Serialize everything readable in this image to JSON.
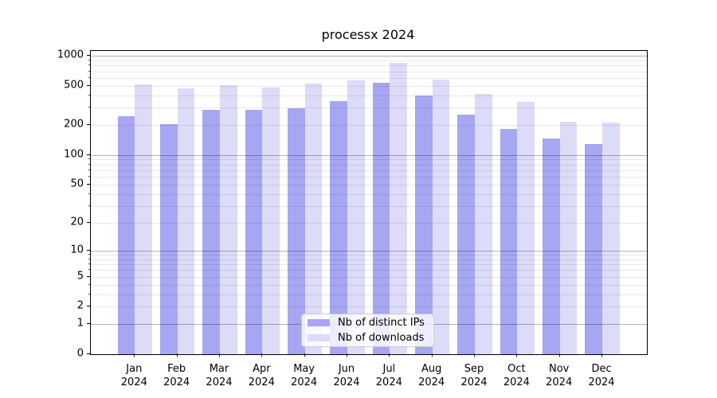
{
  "chart_data": {
    "type": "bar",
    "title": "processx 2024",
    "xlabel": "",
    "ylabel": "",
    "year_label": "2024",
    "categories": [
      "Jan",
      "Feb",
      "Mar",
      "Apr",
      "May",
      "Jun",
      "Jul",
      "Aug",
      "Sep",
      "Oct",
      "Nov",
      "Dec"
    ],
    "series": [
      {
        "name": "Nb of distinct IPs",
        "color": "#a6a6f2",
        "values": [
          246,
          207,
          284,
          285,
          296,
          354,
          537,
          403,
          257,
          184,
          147,
          129
        ]
      },
      {
        "name": "Nb of downloads",
        "color": "#dcdcf8",
        "values": [
          515,
          472,
          505,
          480,
          531,
          572,
          850,
          576,
          415,
          345,
          217,
          212
        ]
      }
    ],
    "y_ticks": [
      0,
      1,
      2,
      5,
      10,
      20,
      50,
      100,
      200,
      500,
      1000
    ],
    "y_scale": "log10(value+1)",
    "ylim": [
      0,
      1123
    ],
    "grid": true,
    "grid_position": "above-bars",
    "legend_position": "lower center"
  }
}
